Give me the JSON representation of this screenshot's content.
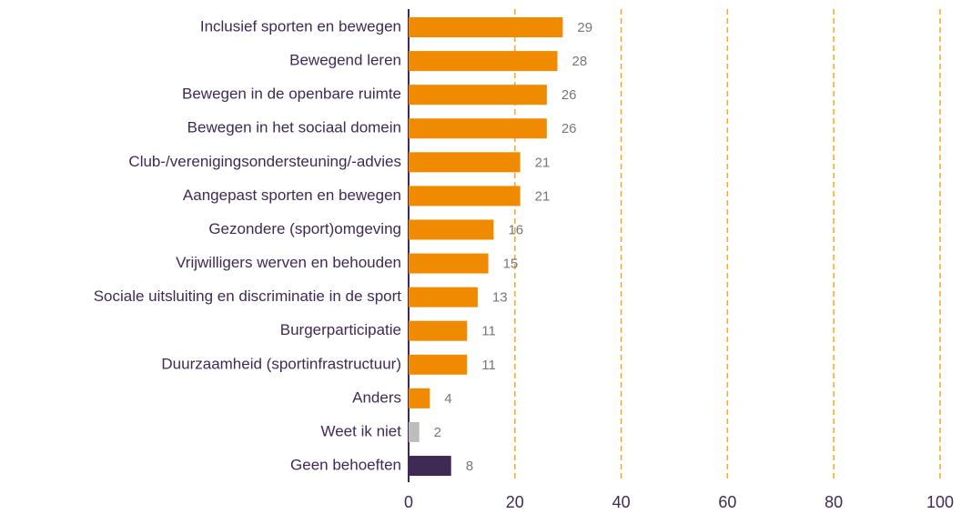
{
  "chart_data": {
    "type": "bar",
    "orientation": "horizontal",
    "categories": [
      "Inclusief sporten en bewegen",
      "Bewegend leren",
      "Bewegen in de openbare ruimte",
      "Bewegen in het sociaal domein",
      "Club-/verenigingsondersteuning/-advies",
      "Aangepast sporten en bewegen",
      "Gezondere (sport)omgeving",
      "Vrijwilligers werven en behouden",
      "Sociale uitsluiting en discriminatie in de sport",
      "Burgerparticipatie",
      "Duurzaamheid (sportinfrastructuur)",
      "Anders",
      "Weet ik niet",
      "Geen behoeften"
    ],
    "values": [
      29,
      28,
      26,
      26,
      21,
      21,
      16,
      15,
      13,
      11,
      11,
      4,
      2,
      8
    ],
    "colors": [
      "#f08a00",
      "#f08a00",
      "#f08a00",
      "#f08a00",
      "#f08a00",
      "#f08a00",
      "#f08a00",
      "#f08a00",
      "#f08a00",
      "#f08a00",
      "#f08a00",
      "#f08a00",
      "#bdbdbd",
      "#3f2a56"
    ],
    "xlim": [
      0,
      100
    ],
    "xticks": [
      0,
      20,
      40,
      60,
      80,
      100
    ],
    "grid": true
  }
}
